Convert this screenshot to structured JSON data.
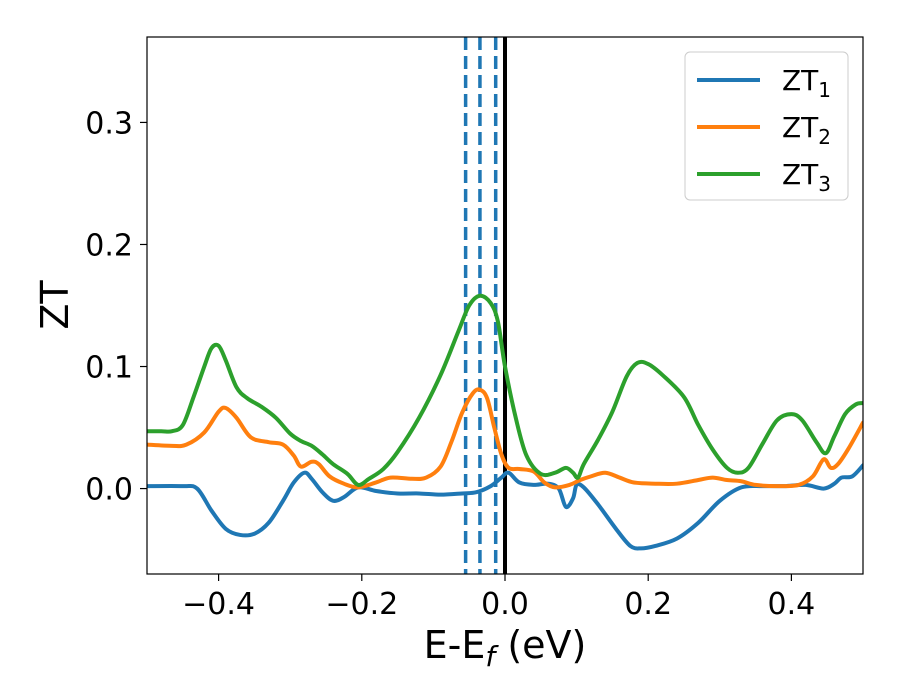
{
  "chart_data": {
    "type": "line",
    "xlabel": "E-E",
    "xlabel_sub": "f",
    "xlabel_unit": " (eV)",
    "ylabel": "ZT",
    "xlim": [
      -0.5,
      0.5
    ],
    "ylim": [
      -0.07,
      0.37
    ],
    "xticks": [
      {
        "value": -0.4,
        "label": "−0.4"
      },
      {
        "value": -0.2,
        "label": "−0.2"
      },
      {
        "value": 0.0,
        "label": "0.0"
      },
      {
        "value": 0.2,
        "label": "0.2"
      },
      {
        "value": 0.4,
        "label": "0.4"
      }
    ],
    "yticks": [
      {
        "value": 0.0,
        "label": "0.0"
      },
      {
        "value": 0.1,
        "label": "0.1"
      },
      {
        "value": 0.2,
        "label": "0.2"
      },
      {
        "value": 0.3,
        "label": "0.3"
      }
    ],
    "grid": false,
    "legend_position": "top-right",
    "vlines": [
      {
        "x": -0.055,
        "style": "dashed",
        "color": "#1f77b4"
      },
      {
        "x": -0.035,
        "style": "dashed",
        "color": "#1f77b4"
      },
      {
        "x": -0.013,
        "style": "dashed",
        "color": "#1f77b4"
      },
      {
        "x": 0.0,
        "style": "solid",
        "color": "#000000"
      }
    ],
    "series": [
      {
        "name": "ZT",
        "subscript": "1",
        "color": "#1f77b4",
        "points": [
          [
            -0.5,
            0.002
          ],
          [
            -0.45,
            0.002
          ],
          [
            -0.43,
            0.0
          ],
          [
            -0.41,
            -0.018
          ],
          [
            -0.39,
            -0.033
          ],
          [
            -0.37,
            -0.038
          ],
          [
            -0.35,
            -0.037
          ],
          [
            -0.33,
            -0.028
          ],
          [
            -0.31,
            -0.01
          ],
          [
            -0.295,
            0.005
          ],
          [
            -0.28,
            0.013
          ],
          [
            -0.27,
            0.008
          ],
          [
            -0.255,
            -0.003
          ],
          [
            -0.24,
            -0.01
          ],
          [
            -0.225,
            -0.007
          ],
          [
            -0.205,
            0.001
          ],
          [
            -0.18,
            -0.002
          ],
          [
            -0.15,
            -0.004
          ],
          [
            -0.12,
            -0.004
          ],
          [
            -0.09,
            -0.005
          ],
          [
            -0.06,
            -0.004
          ],
          [
            -0.04,
            -0.003
          ],
          [
            -0.02,
            0.002
          ],
          [
            -0.005,
            0.009
          ],
          [
            0.005,
            0.013
          ],
          [
            0.02,
            0.005
          ],
          [
            0.04,
            0.003
          ],
          [
            0.06,
            0.004
          ],
          [
            0.075,
            0.0
          ],
          [
            0.085,
            -0.015
          ],
          [
            0.095,
            -0.008
          ],
          [
            0.1,
            0.003
          ],
          [
            0.11,
            0.001
          ],
          [
            0.13,
            -0.013
          ],
          [
            0.155,
            -0.033
          ],
          [
            0.175,
            -0.047
          ],
          [
            0.19,
            -0.049
          ],
          [
            0.21,
            -0.047
          ],
          [
            0.24,
            -0.041
          ],
          [
            0.27,
            -0.028
          ],
          [
            0.3,
            -0.01
          ],
          [
            0.33,
            0.001
          ],
          [
            0.36,
            0.002
          ],
          [
            0.39,
            0.002
          ],
          [
            0.42,
            0.003
          ],
          [
            0.445,
            0.0
          ],
          [
            0.46,
            0.004
          ],
          [
            0.47,
            0.009
          ],
          [
            0.485,
            0.01
          ],
          [
            0.5,
            0.019
          ]
        ]
      },
      {
        "name": "ZT",
        "subscript": "2",
        "color": "#ff7f0e",
        "points": [
          [
            -0.5,
            0.036
          ],
          [
            -0.465,
            0.035
          ],
          [
            -0.445,
            0.036
          ],
          [
            -0.42,
            0.046
          ],
          [
            -0.4,
            0.063
          ],
          [
            -0.39,
            0.066
          ],
          [
            -0.375,
            0.058
          ],
          [
            -0.355,
            0.042
          ],
          [
            -0.33,
            0.038
          ],
          [
            -0.31,
            0.036
          ],
          [
            -0.295,
            0.027
          ],
          [
            -0.285,
            0.018
          ],
          [
            -0.27,
            0.022
          ],
          [
            -0.26,
            0.02
          ],
          [
            -0.245,
            0.01
          ],
          [
            -0.225,
            0.004
          ],
          [
            -0.205,
            0.001
          ],
          [
            -0.18,
            0.005
          ],
          [
            -0.16,
            0.009
          ],
          [
            -0.13,
            0.008
          ],
          [
            -0.11,
            0.009
          ],
          [
            -0.09,
            0.018
          ],
          [
            -0.075,
            0.038
          ],
          [
            -0.06,
            0.062
          ],
          [
            -0.045,
            0.078
          ],
          [
            -0.035,
            0.081
          ],
          [
            -0.025,
            0.074
          ],
          [
            -0.015,
            0.05
          ],
          [
            -0.005,
            0.028
          ],
          [
            0.005,
            0.017
          ],
          [
            0.02,
            0.016
          ],
          [
            0.04,
            0.014
          ],
          [
            0.055,
            0.005
          ],
          [
            0.07,
            0.001
          ],
          [
            0.09,
            0.003
          ],
          [
            0.105,
            0.007
          ],
          [
            0.12,
            0.01
          ],
          [
            0.14,
            0.013
          ],
          [
            0.16,
            0.009
          ],
          [
            0.18,
            0.005
          ],
          [
            0.21,
            0.004
          ],
          [
            0.24,
            0.004
          ],
          [
            0.27,
            0.007
          ],
          [
            0.29,
            0.009
          ],
          [
            0.31,
            0.007
          ],
          [
            0.33,
            0.006
          ],
          [
            0.35,
            0.003
          ],
          [
            0.38,
            0.002
          ],
          [
            0.41,
            0.003
          ],
          [
            0.43,
            0.01
          ],
          [
            0.445,
            0.024
          ],
          [
            0.455,
            0.017
          ],
          [
            0.465,
            0.02
          ],
          [
            0.48,
            0.033
          ],
          [
            0.5,
            0.054
          ]
        ]
      },
      {
        "name": "ZT",
        "subscript": "3",
        "color": "#2ca02c",
        "points": [
          [
            -0.5,
            0.047
          ],
          [
            -0.48,
            0.047
          ],
          [
            -0.465,
            0.047
          ],
          [
            -0.45,
            0.052
          ],
          [
            -0.435,
            0.075
          ],
          [
            -0.42,
            0.1
          ],
          [
            -0.41,
            0.115
          ],
          [
            -0.4,
            0.117
          ],
          [
            -0.39,
            0.105
          ],
          [
            -0.375,
            0.083
          ],
          [
            -0.36,
            0.074
          ],
          [
            -0.34,
            0.067
          ],
          [
            -0.32,
            0.058
          ],
          [
            -0.3,
            0.045
          ],
          [
            -0.285,
            0.039
          ],
          [
            -0.27,
            0.035
          ],
          [
            -0.255,
            0.028
          ],
          [
            -0.24,
            0.02
          ],
          [
            -0.22,
            0.012
          ],
          [
            -0.205,
            0.003
          ],
          [
            -0.19,
            0.008
          ],
          [
            -0.17,
            0.016
          ],
          [
            -0.15,
            0.03
          ],
          [
            -0.12,
            0.058
          ],
          [
            -0.09,
            0.093
          ],
          [
            -0.065,
            0.129
          ],
          [
            -0.05,
            0.15
          ],
          [
            -0.035,
            0.158
          ],
          [
            -0.02,
            0.152
          ],
          [
            -0.01,
            0.137
          ],
          [
            0.0,
            0.1
          ],
          [
            0.015,
            0.058
          ],
          [
            0.03,
            0.027
          ],
          [
            0.05,
            0.012
          ],
          [
            0.07,
            0.013
          ],
          [
            0.085,
            0.017
          ],
          [
            0.095,
            0.013
          ],
          [
            0.102,
            0.009
          ],
          [
            0.11,
            0.02
          ],
          [
            0.13,
            0.04
          ],
          [
            0.15,
            0.063
          ],
          [
            0.17,
            0.092
          ],
          [
            0.185,
            0.103
          ],
          [
            0.2,
            0.102
          ],
          [
            0.22,
            0.093
          ],
          [
            0.25,
            0.075
          ],
          [
            0.27,
            0.052
          ],
          [
            0.29,
            0.032
          ],
          [
            0.31,
            0.017
          ],
          [
            0.325,
            0.013
          ],
          [
            0.34,
            0.017
          ],
          [
            0.36,
            0.037
          ],
          [
            0.38,
            0.056
          ],
          [
            0.4,
            0.061
          ],
          [
            0.415,
            0.056
          ],
          [
            0.435,
            0.038
          ],
          [
            0.448,
            0.029
          ],
          [
            0.46,
            0.043
          ],
          [
            0.475,
            0.061
          ],
          [
            0.49,
            0.069
          ],
          [
            0.5,
            0.07
          ]
        ]
      }
    ]
  }
}
